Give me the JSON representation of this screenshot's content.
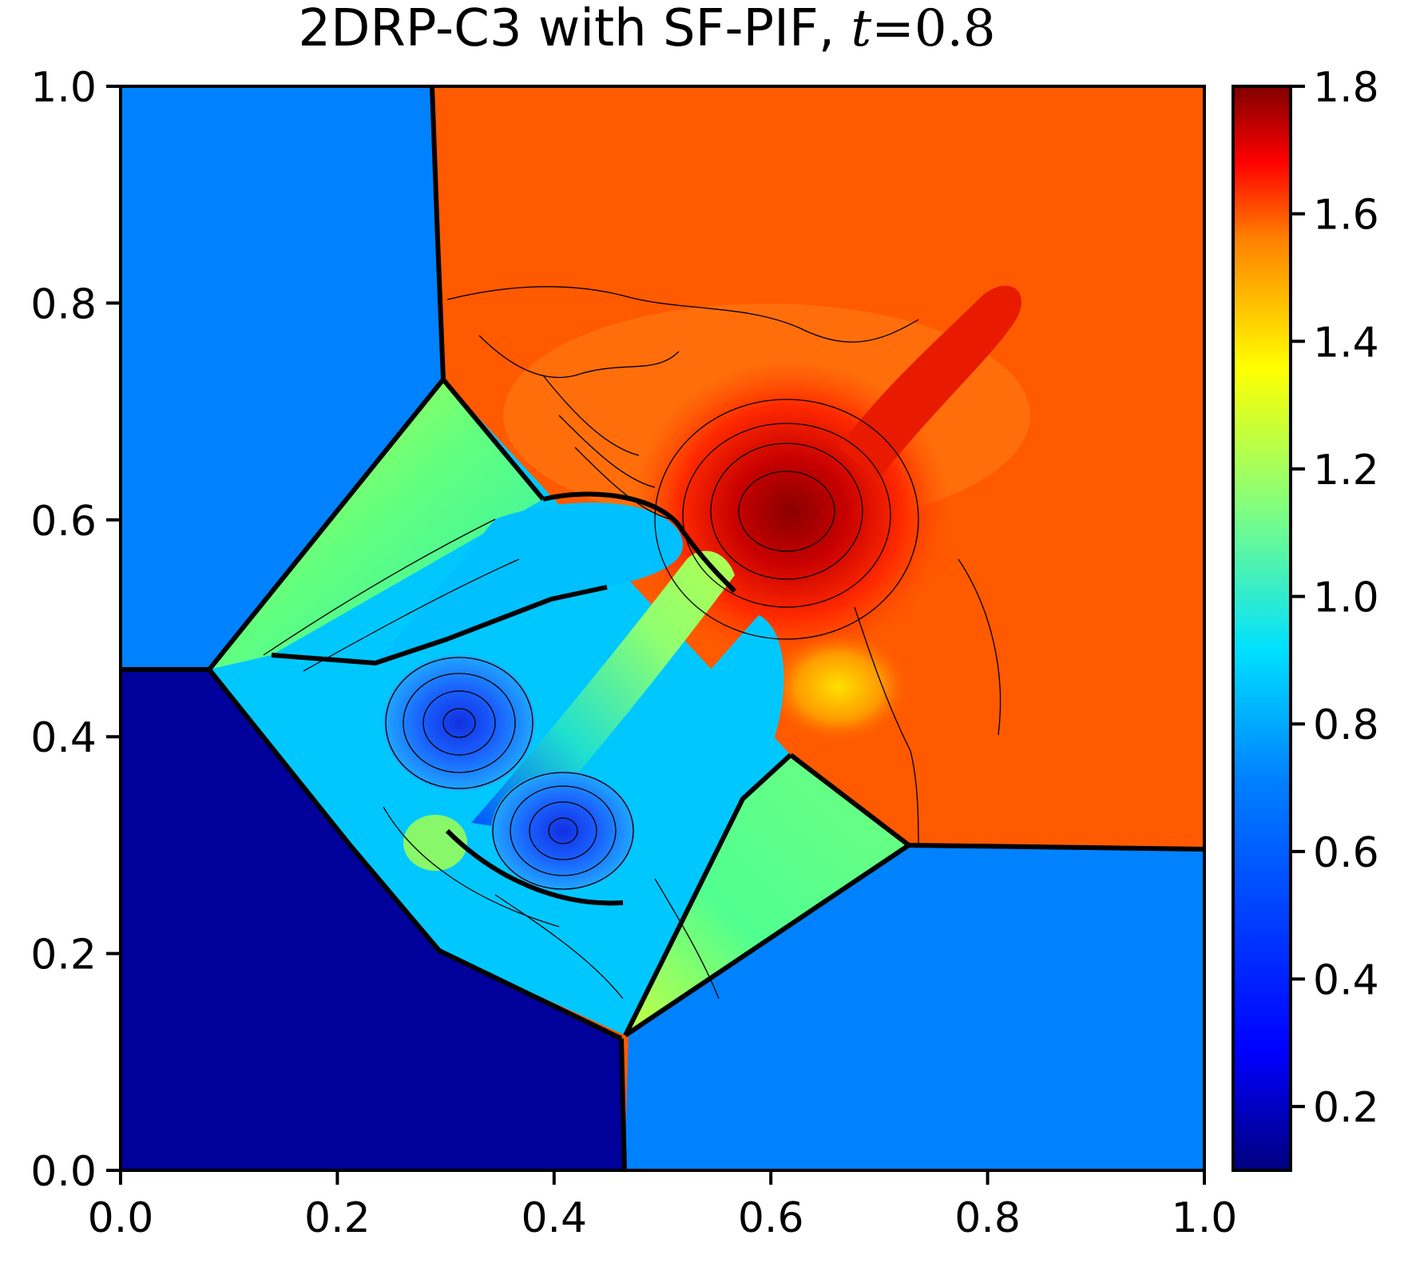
{
  "chart_data": {
    "type": "heatmap",
    "subtype": "filled-contour",
    "title": {
      "text": "2DRP-C3 with SF-PIF, ",
      "time_var": "t",
      "time_eq": "=",
      "time_val": "0.8"
    },
    "xlabel": "",
    "ylabel": "",
    "xlim": [
      0.0,
      1.0
    ],
    "ylim": [
      0.0,
      1.0
    ],
    "xticks": [
      0.0,
      0.2,
      0.4,
      0.6,
      0.8,
      1.0
    ],
    "xtick_labels": [
      "0.0",
      "0.2",
      "0.4",
      "0.6",
      "0.8",
      "1.0"
    ],
    "yticks": [
      0.0,
      0.2,
      0.4,
      0.6,
      0.8,
      1.0
    ],
    "ytick_labels": [
      "0.0",
      "0.2",
      "0.4",
      "0.6",
      "0.8",
      "1.0"
    ],
    "colorbar": {
      "colormap": "jet",
      "range": [
        0.1,
        1.8
      ],
      "ticks": [
        0.2,
        0.4,
        0.6,
        0.8,
        1.0,
        1.2,
        1.4,
        1.6,
        1.8
      ],
      "tick_labels": [
        "0.2",
        "0.4",
        "0.6",
        "0.8",
        "1.0",
        "1.2",
        "1.4",
        "1.6",
        "1.8"
      ],
      "colors": [
        "#000080",
        "#0000ff",
        "#0080ff",
        "#00ffff",
        "#80ff80",
        "#ffff00",
        "#ff8000",
        "#ff0000",
        "#800000"
      ]
    },
    "regions": [
      {
        "name": "top-left",
        "value": 0.58,
        "color": "#0080ff"
      },
      {
        "name": "top-right",
        "value": 1.5,
        "color": "#ff5500"
      },
      {
        "name": "bottom-left",
        "value": 0.14,
        "color": "#000090"
      },
      {
        "name": "bottom-right",
        "value": 0.58,
        "color": "#0080ff"
      },
      {
        "name": "left-wedge",
        "value": 0.66,
        "color": "#00c8ff"
      },
      {
        "name": "upper-triangle",
        "value": 0.95,
        "color": "#50ff90"
      },
      {
        "name": "lower-triangle",
        "value": 0.95,
        "color": "#50ff90"
      },
      {
        "name": "jet-stem",
        "value": 0.9,
        "color": "#70ff80"
      },
      {
        "name": "upper-vortex",
        "value": 0.4,
        "color": "#1040ff"
      },
      {
        "name": "lower-vortex",
        "value": 0.4,
        "color": "#1040ff"
      },
      {
        "name": "density-peak",
        "value": 1.75,
        "color": "#a00000"
      }
    ]
  }
}
